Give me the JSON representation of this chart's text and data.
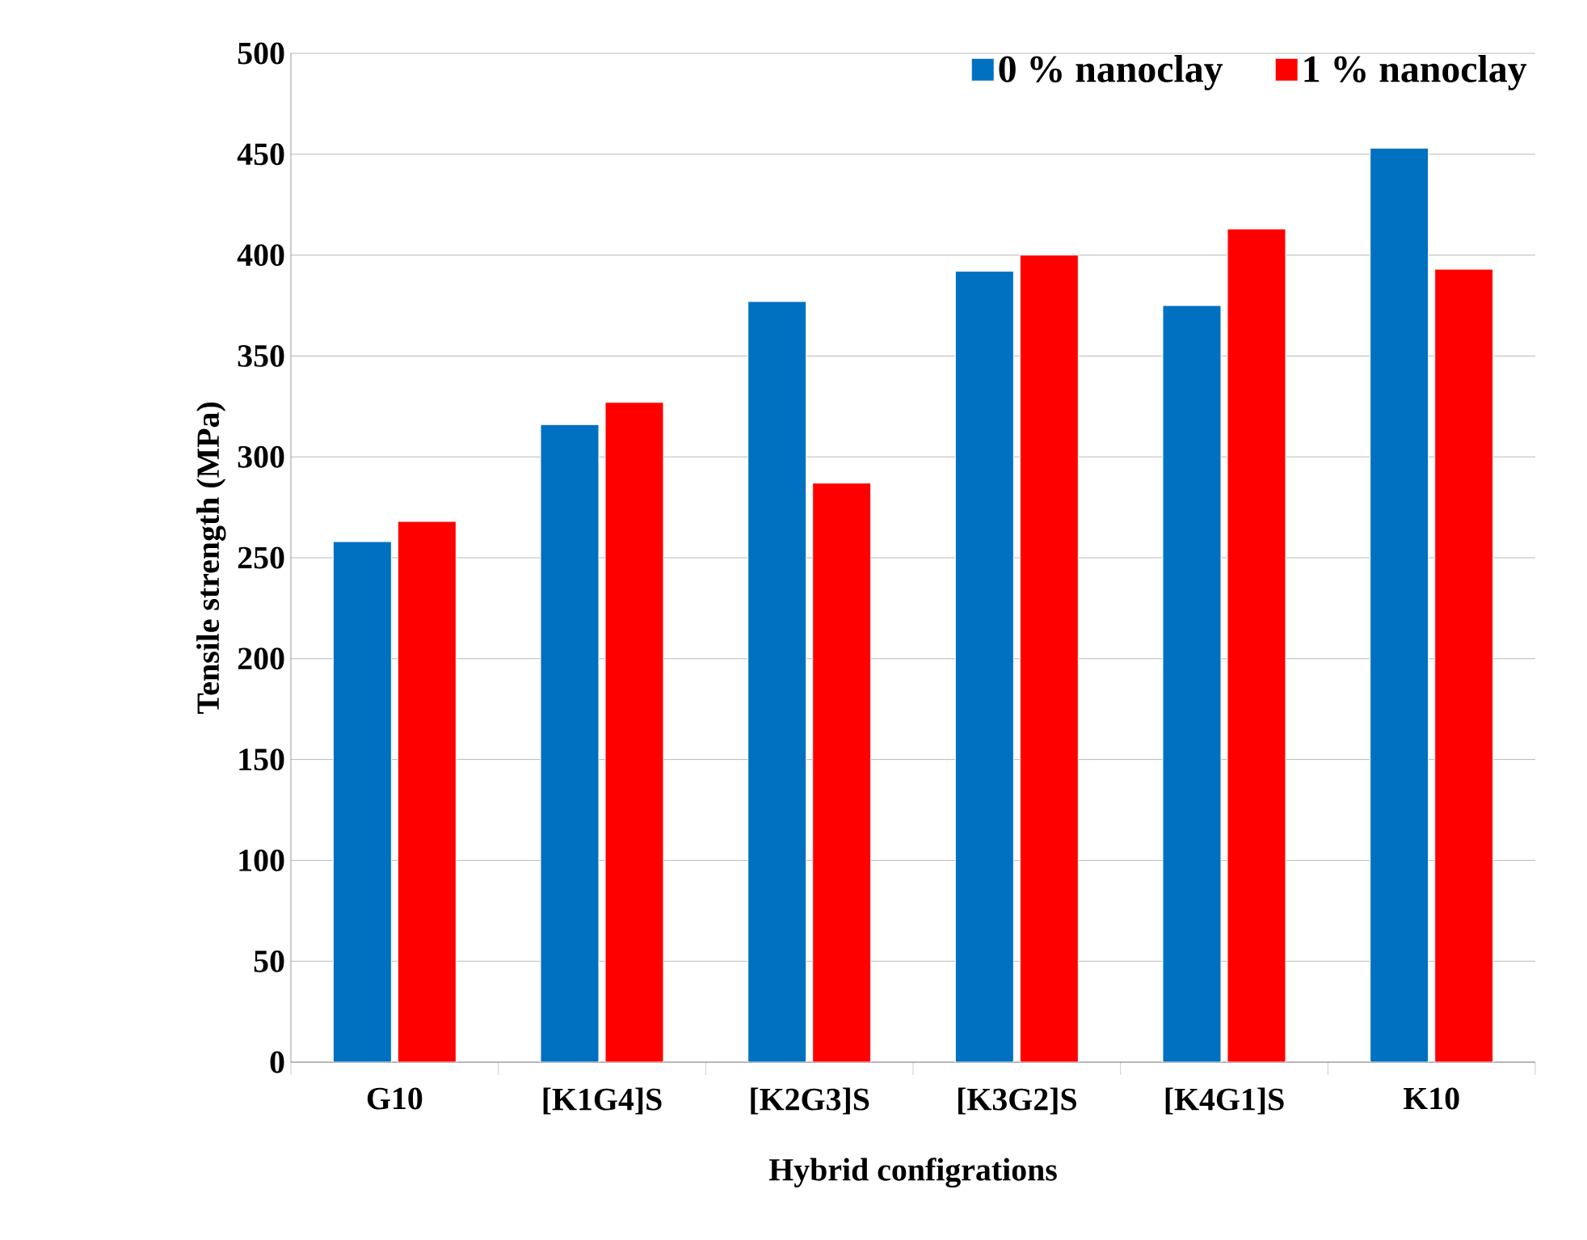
{
  "chart_data": {
    "type": "bar",
    "xlabel": "Hybrid configrations",
    "ylabel": "Tensile strength (MPa)",
    "categories": [
      "G10",
      "[K1G4]S",
      "[K2G3]S",
      "[K3G2]S",
      "[K4G1]S",
      "K10"
    ],
    "series": [
      {
        "name": "0 % nanoclay",
        "color": "#0070c0",
        "values": [
          258,
          316,
          377,
          392,
          375,
          453
        ]
      },
      {
        "name": "1 % nanoclay",
        "color": "#ff0000",
        "values": [
          268,
          327,
          287,
          400,
          413,
          393
        ]
      }
    ],
    "ylim": [
      0,
      500
    ],
    "yticks": [
      0,
      50,
      100,
      150,
      200,
      250,
      300,
      350,
      400,
      450,
      500
    ],
    "grid": "y",
    "legend": "top right"
  }
}
